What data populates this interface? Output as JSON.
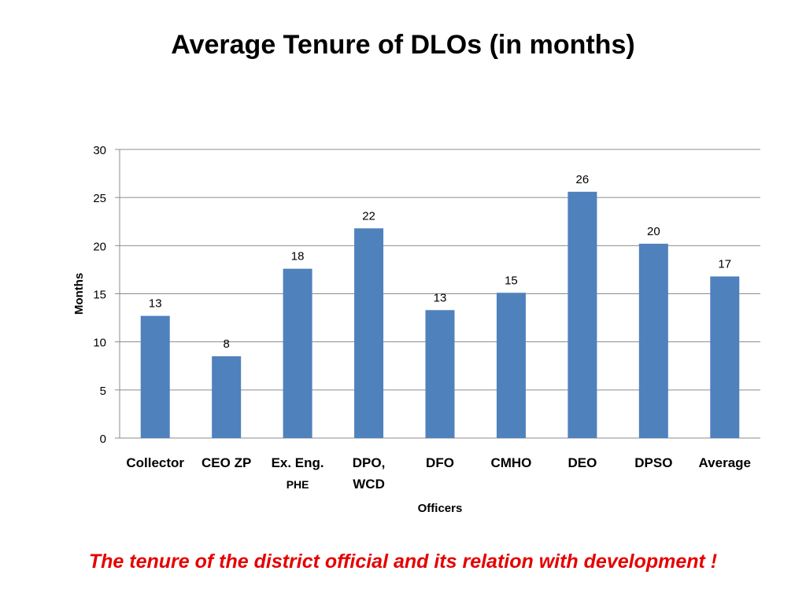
{
  "slide": {
    "title": "Average Tenure  of DLOs (in months)",
    "caption": "The tenure of the district official and its relation with development !"
  },
  "chart_data": {
    "type": "bar",
    "title": "",
    "xlabel": "Officers",
    "ylabel": "Months",
    "ylim": [
      0,
      30
    ],
    "yticks": [
      0,
      5,
      10,
      15,
      20,
      25,
      30
    ],
    "grid": true,
    "legend": "none",
    "bar_color": "#4f81bd",
    "categories": [
      {
        "line1": "Collector",
        "line2": ""
      },
      {
        "line1": "CEO ZP",
        "line2": ""
      },
      {
        "line1": "Ex. Eng.",
        "line2": "PHE"
      },
      {
        "line1": "DPO,",
        "line2": "WCD"
      },
      {
        "line1": "DFO",
        "line2": ""
      },
      {
        "line1": "CMHO",
        "line2": ""
      },
      {
        "line1": "DEO",
        "line2": ""
      },
      {
        "line1": "DPSO",
        "line2": ""
      },
      {
        "line1": "Average",
        "line2": ""
      }
    ],
    "values": [
      12.7,
      8.5,
      17.6,
      21.8,
      13.3,
      15.1,
      25.6,
      20.2,
      16.8
    ],
    "data_labels": [
      "13",
      "8",
      "18",
      "22",
      "13",
      "15",
      "26",
      "20",
      "17"
    ]
  }
}
